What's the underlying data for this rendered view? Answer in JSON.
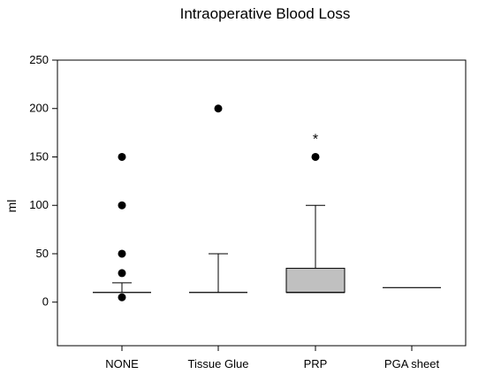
{
  "chart_data": {
    "type": "box",
    "title": "Intraoperative Blood Loss",
    "ylabel": "ml",
    "xlabel": "",
    "ylim": [
      -45,
      250
    ],
    "yticks": [
      0,
      50,
      100,
      150,
      200,
      250
    ],
    "categories": [
      "NONE",
      "Tissue Glue",
      "PRP",
      "PGA sheet"
    ],
    "boxes": [
      {
        "category": "NONE",
        "whisker_low": 10,
        "q1": 10,
        "median": 10,
        "q3": 10,
        "whisker_high": 20,
        "outliers": [
          5,
          30,
          50,
          100,
          150
        ],
        "extremes": []
      },
      {
        "category": "Tissue Glue",
        "whisker_low": 10,
        "q1": 10,
        "median": 10,
        "q3": 10,
        "whisker_high": 50,
        "outliers": [
          200
        ],
        "extremes": []
      },
      {
        "category": "PRP",
        "whisker_low": 10,
        "q1": 10,
        "median": 10,
        "q3": 35,
        "whisker_high": 100,
        "outliers": [
          150
        ],
        "extremes": [
          170
        ]
      },
      {
        "category": "PGA sheet",
        "whisker_low": 15,
        "q1": 15,
        "median": 15,
        "q3": 15,
        "whisker_high": 15,
        "outliers": [],
        "extremes": []
      }
    ],
    "extreme_marker": "*",
    "box_fill": "#c0c0c0",
    "grid": false
  }
}
